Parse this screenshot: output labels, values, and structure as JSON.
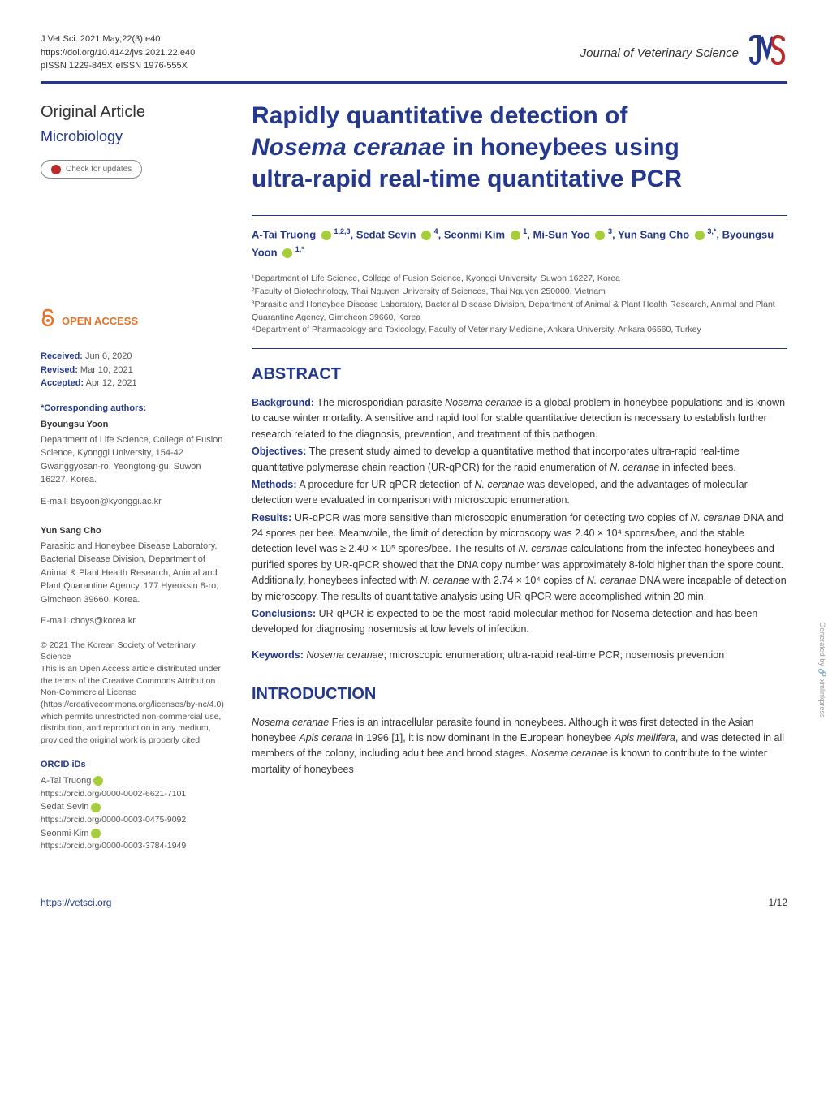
{
  "header": {
    "citation": "J Vet Sci. 2021 May;22(3):e40",
    "doi": "https://doi.org/10.4142/jvs.2021.22.e40",
    "issn": "pISSN 1229-845X·eISSN 1976-555X",
    "journal_title": "Journal of Veterinary Science",
    "logo_text": "JVS"
  },
  "sidebar": {
    "article_type": "Original Article",
    "category": "Microbiology",
    "check_updates": "Check for updates",
    "open_access": "OPEN ACCESS",
    "dates": {
      "received_label": "Received:",
      "received": "Jun 6, 2020",
      "revised_label": "Revised:",
      "revised": "Mar 10, 2021",
      "accepted_label": "Accepted:",
      "accepted": "Apr 12, 2021"
    },
    "corresponding": {
      "heading": "*Corresponding authors:",
      "authors": [
        {
          "name": "Byoungsu Yoon",
          "address": "Department of Life Science, College of Fusion Science, Kyonggi University, 154-42 Gwanggyosan-ro, Yeongtong-gu, Suwon 16227, Korea.",
          "email": "E-mail: bsyoon@kyonggi.ac.kr"
        },
        {
          "name": "Yun Sang Cho",
          "address": "Parasitic and Honeybee Disease Laboratory, Bacterial Disease Division, Department of Animal & Plant Health Research, Animal and Plant Quarantine Agency, 177 Hyeoksin 8-ro, Gimcheon 39660, Korea.",
          "email": "E-mail: choys@korea.kr"
        }
      ]
    },
    "copyright": "© 2021 The Korean Society of Veterinary Science",
    "license": "This is an Open Access article distributed under the terms of the Creative Commons Attribution Non-Commercial License (https://creativecommons.org/licenses/by-nc/4.0) which permits unrestricted non-commercial use, distribution, and reproduction in any medium, provided the original work is properly cited.",
    "orcid": {
      "heading": "ORCID iDs",
      "entries": [
        {
          "name": "A-Tai Truong",
          "url": "https://orcid.org/0000-0002-6621-7101"
        },
        {
          "name": "Sedat Sevin",
          "url": "https://orcid.org/0000-0003-0475-9092"
        },
        {
          "name": "Seonmi Kim",
          "url": "https://orcid.org/0000-0003-3784-1949"
        }
      ]
    }
  },
  "title": {
    "line1": "Rapidly quantitative detection of",
    "line2_em": "Nosema ceranae",
    "line2_rest": " in honeybees using",
    "line3": "ultra-rapid real-time quantitative PCR"
  },
  "authors_html": "A-Tai Truong ⓘ <sup>1,2,3</sup>, Sedat Sevin ⓘ <sup>4</sup>, Seonmi Kim ⓘ <sup>1</sup>, Mi-Sun Yoo ⓘ <sup>3</sup>, Yun Sang Cho ⓘ <sup>3,*</sup>, Byoungsu Yoon ⓘ <sup>1,*</sup>",
  "affiliations": [
    "¹Department of Life Science, College of Fusion Science, Kyonggi University, Suwon 16227, Korea",
    "²Faculty of Biotechnology, Thai Nguyen University of Sciences, Thai Nguyen 250000, Vietnam",
    "³Parasitic and Honeybee Disease Laboratory, Bacterial Disease Division, Department of Animal & Plant Health Research, Animal and Plant Quarantine Agency, Gimcheon 39660, Korea",
    "⁴Department of Pharmacology and Toxicology, Faculty of Veterinary Medicine, Ankara University, Ankara 06560, Turkey"
  ],
  "abstract": {
    "heading": "ABSTRACT",
    "background_label": "Background:",
    "background": "The microsporidian parasite Nosema ceranae is a global problem in honeybee populations and is known to cause winter mortality. A sensitive and rapid tool for stable quantitative detection is necessary to establish further research related to the diagnosis, prevention, and treatment of this pathogen.",
    "objectives_label": "Objectives:",
    "objectives": "The present study aimed to develop a quantitative method that incorporates ultra-rapid real-time quantitative polymerase chain reaction (UR-qPCR) for the rapid enumeration of N. ceranae in infected bees.",
    "methods_label": "Methods:",
    "methods": "A procedure for UR-qPCR detection of N. ceranae was developed, and the advantages of molecular detection were evaluated in comparison with microscopic enumeration.",
    "results_label": "Results:",
    "results": "UR-qPCR was more sensitive than microscopic enumeration for detecting two copies of N. ceranae DNA and 24 spores per bee. Meanwhile, the limit of detection by microscopy was 2.40 × 10⁴ spores/bee, and the stable detection level was ≥ 2.40 × 10⁵ spores/bee. The results of N. ceranae calculations from the infected honeybees and purified spores by UR-qPCR showed that the DNA copy number was approximately 8-fold higher than the spore count. Additionally, honeybees infected with N. ceranae with 2.74 × 10⁴ copies of N. ceranae DNA were incapable of detection by microscopy. The results of quantitative analysis using UR-qPCR were accomplished within 20 min.",
    "conclusions_label": "Conclusions:",
    "conclusions": "UR-qPCR is expected to be the most rapid molecular method for Nosema detection and has been developed for diagnosing nosemosis at low levels of infection.",
    "keywords_label": "Keywords:",
    "keywords": "Nosema ceranae; microscopic enumeration; ultra-rapid real-time PCR; nosemosis prevention"
  },
  "introduction": {
    "heading": "INTRODUCTION",
    "body": "Nosema ceranae Fries is an intracellular parasite found in honeybees. Although it was first detected in the Asian honeybee Apis cerana in 1996 [1], it is now dominant in the European honeybee Apis mellifera, and was detected in all members of the colony, including adult bee and brood stages. Nosema ceranae is known to contribute to the winter mortality of honeybees"
  },
  "footer": {
    "url": "https://vetsci.org",
    "page": "1/12"
  },
  "watermark": "Generated by 🔗 xmlinkpress"
}
